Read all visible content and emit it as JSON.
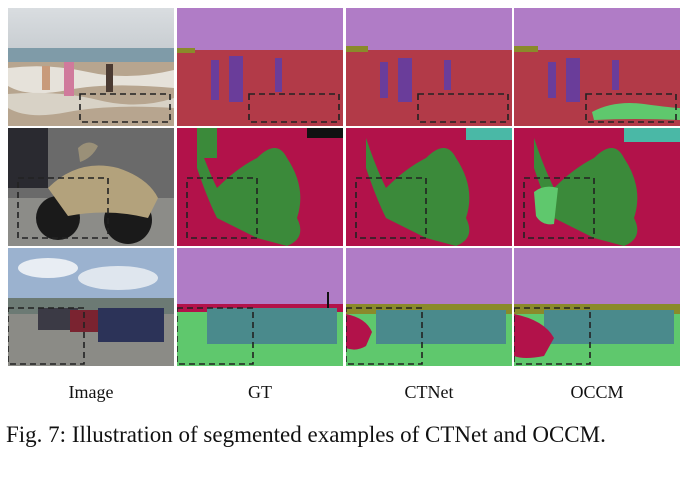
{
  "figure": {
    "columns": [
      "Image",
      "GT",
      "CTNet",
      "OCCM"
    ],
    "caption": "Fig. 7: Illustration of segmented examples of CTNet and OCCM.",
    "colors": {
      "sky_purple": "#b07cc6",
      "ground_red": "#b23a48",
      "person_purple": "#6a3d9a",
      "bike_green": "#3b8a3a",
      "grass_green": "#5fc86d",
      "car_teal": "#4a8a8c",
      "crimson": "#b2124a",
      "olive": "#8a8a2a"
    }
  }
}
